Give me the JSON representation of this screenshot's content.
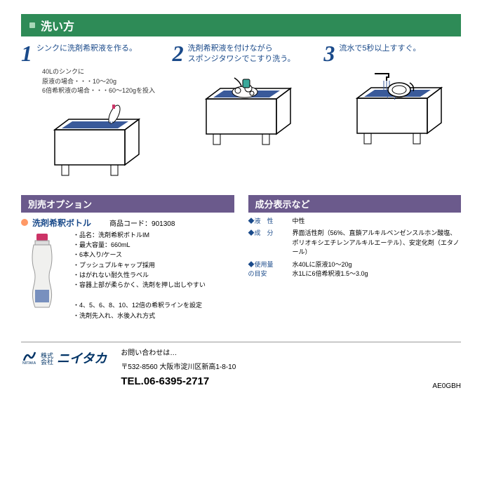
{
  "section_title": "洗い方",
  "steps": [
    {
      "num": "1",
      "title": "シンクに洗剤希釈液を作る。",
      "detail": "40Lのシンクに\n原液の場合・・・10〜20g\n6倍希釈液の場合・・・60〜120gを投入"
    },
    {
      "num": "2",
      "title": "洗剤希釈液を付けながら\nスポンジタワシでこすり洗う。",
      "detail": ""
    },
    {
      "num": "3",
      "title": "流水で5秒以上すすぐ。",
      "detail": ""
    }
  ],
  "option": {
    "header": "別売オプション",
    "name": "洗剤希釈ボトル",
    "code_label": "商品コード：",
    "code": "901308",
    "specs": [
      "・品名：洗剤希釈ボトルIM",
      "・最大容量：660mL",
      "・6本入り/ケース",
      "・プッシュプルキャップ採用",
      "・はがれない耐久性ラベル",
      "・容器上部が柔らかく、洗剤を押し出しやすい",
      "",
      "・4、5、6、8、10、12倍の希釈ラインを設定",
      "・洗剤先入れ、水後入れ方式"
    ]
  },
  "ingredient": {
    "header": "成分表示など",
    "rows": [
      {
        "label": "液　性",
        "value": "中性"
      },
      {
        "label": "成　分",
        "value": "界面活性剤（56%、直鎖アルキルベンゼンスルホン酸塩、ポリオキシエチレンアルキルエーテル）、安定化剤（エタノール）"
      },
      {
        "label": "使用量\nの目安",
        "value": "水40Lに原液10〜20g\n水1Lに6倍希釈液1.5〜3.0g"
      }
    ]
  },
  "footer": {
    "company_small": "株式\n会社",
    "company_name": "ニイタカ",
    "inquiry": "お問い合わせは…",
    "address_zip": "〒532-8560",
    "address": "大阪市淀川区新高1-8-10",
    "tel_label": "TEL.",
    "tel": "06-6395-2717",
    "doc_code": "AE0GBH"
  },
  "colors": {
    "header_bg": "#2e8b57",
    "sub_header_bg": "#6b5a8c",
    "accent_blue": "#1a4a8a",
    "orange": "#ff9966",
    "sink_blue": "#3a5a9a"
  }
}
